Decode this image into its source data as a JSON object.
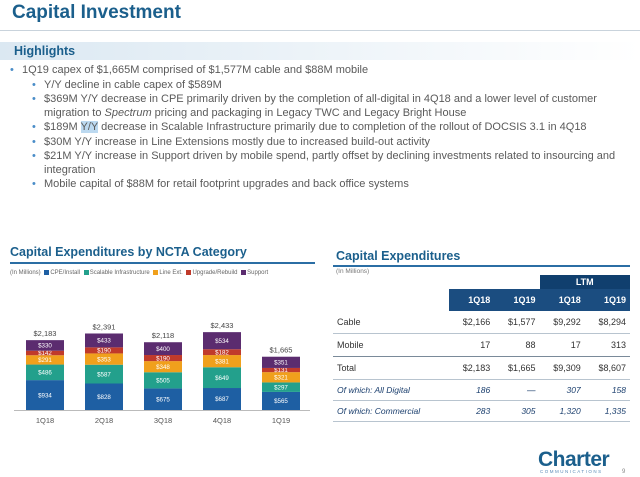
{
  "page_title": "Capital Investment",
  "highlights_heading": "Highlights",
  "bullets": [
    {
      "level": 1,
      "text": "1Q19 capex of $1,665M comprised of $1,577M cable and $88M mobile"
    },
    {
      "level": 2,
      "text": "Y/Y decline in cable capex of $589M"
    },
    {
      "level": 2,
      "text_pre": "$369M Y/Y decrease in CPE primarily driven by the completion of all-digital in 4Q18 and a lower level of customer migration to ",
      "text_em": "Spectrum",
      "text_post": " pricing and packaging in Legacy TWC and Legacy Bright House"
    },
    {
      "level": 2,
      "text_pre": "$189M ",
      "text_hl": "Y/Y",
      "text_post": " decrease in Scalable Infrastructure primarily due to completion of the rollout of DOCSIS 3.1 in 4Q18"
    },
    {
      "level": 2,
      "text": "$30M Y/Y increase in Line Extensions mostly due to increased build-out activity"
    },
    {
      "level": 2,
      "text": "$21M Y/Y increase in Support driven by mobile spend, partly offset by declining investments related to insourcing and integration"
    },
    {
      "level": 2,
      "text": "Mobile capital of $88M for retail footprint upgrades and back office systems"
    }
  ],
  "chart_section_title": "Capital Expenditures by NCTA Category",
  "chart_data": {
    "type": "bar",
    "stacked": true,
    "units_note": "(In Millions)",
    "categories": [
      "1Q18",
      "2Q18",
      "3Q18",
      "4Q18",
      "1Q19"
    ],
    "series": [
      {
        "name": "CPE/Install",
        "color": "#1e5fa3",
        "values": [
          934,
          828,
          675,
          687,
          565
        ]
      },
      {
        "name": "Scalable Infrastructure",
        "color": "#23a08c",
        "values": [
          486,
          587,
          505,
          649,
          297
        ]
      },
      {
        "name": "Line Ext.",
        "color": "#f0a01c",
        "values": [
          291,
          353,
          348,
          381,
          321
        ]
      },
      {
        "name": "Upgrade/Rebuild",
        "color": "#c03a2b",
        "values": [
          142,
          190,
          190,
          182,
          131
        ]
      },
      {
        "name": "Support",
        "color": "#5b2c6f",
        "values": [
          330,
          433,
          400,
          534,
          351
        ]
      }
    ],
    "totals": [
      "$2,183",
      "$2,391",
      "$2,118",
      "$2,433",
      "$1,665"
    ],
    "labels": [
      [
        "$934",
        "$828",
        "$675",
        "$687",
        "$565"
      ],
      [
        "$486",
        "$587",
        "$505",
        "$649",
        "$297"
      ],
      [
        "$291",
        "$353",
        "$348",
        "$381",
        "$321"
      ],
      [
        "$142",
        "$190",
        "$190",
        "$182",
        "$131"
      ],
      [
        "$330",
        "$433",
        "$400",
        "$534",
        "$351"
      ]
    ]
  },
  "table": {
    "title": "Capital Expenditures",
    "units_note": "(In Millions)",
    "group_header": "LTM",
    "columns": [
      "1Q18",
      "1Q19",
      "1Q18",
      "1Q19"
    ],
    "rows": [
      {
        "label": "Cable",
        "values": [
          "$2,166",
          "$1,577",
          "$9,292",
          "$8,294"
        ]
      },
      {
        "label": "Mobile",
        "values": [
          "17",
          "88",
          "17",
          "313"
        ]
      },
      {
        "label": "Total",
        "values": [
          "$2,183",
          "$1,665",
          "$9,309",
          "$8,607"
        ]
      },
      {
        "label": "Of which: All Digital",
        "values": [
          "186",
          "—",
          "307",
          "158"
        ]
      },
      {
        "label": "Of which: Commercial",
        "values": [
          "283",
          "305",
          "1,320",
          "1,335"
        ]
      }
    ]
  },
  "logo_text": "Charter",
  "logo_subtext": "COMMUNICATIONS",
  "page_number": "9"
}
